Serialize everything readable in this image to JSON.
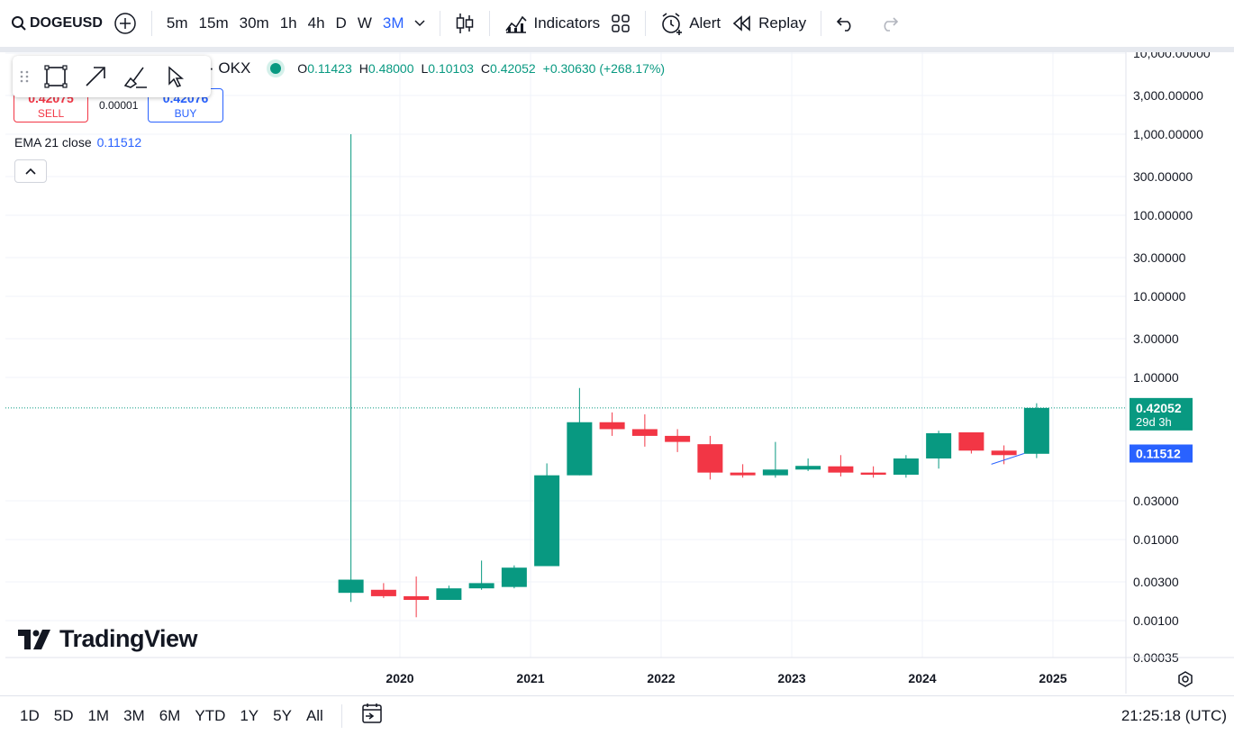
{
  "symbol": "DOGEUSD",
  "toolbar": {
    "intervals": [
      "5m",
      "15m",
      "30m",
      "1h",
      "4h",
      "D",
      "W",
      "3M"
    ],
    "active_interval": "3M",
    "indicators_label": "Indicators",
    "alert_label": "Alert",
    "replay_label": "Replay"
  },
  "legend": {
    "exchange_suffix": "· OKX",
    "o_label": "O",
    "o_value": "0.11423",
    "h_label": "H",
    "h_value": "0.48000",
    "l_label": "L",
    "l_value": "0.10103",
    "c_label": "C",
    "c_value": "0.42052",
    "change": "+0.30630 (+268.17%)"
  },
  "trade": {
    "sell_price": "0.42075",
    "sell_label": "SELL",
    "spread": "0.00001",
    "buy_price": "0.42076",
    "buy_label": "BUY"
  },
  "indicator": {
    "label": "EMA 21 close",
    "value": "0.11512"
  },
  "branding": {
    "logo_text": "TradingView"
  },
  "bottom": {
    "ranges": [
      "1D",
      "5D",
      "1M",
      "3M",
      "6M",
      "YTD",
      "1Y",
      "5Y",
      "All"
    ],
    "clock": "21:25:18 (UTC)"
  },
  "colors": {
    "up": "#089981",
    "down": "#f23645",
    "ema": "#2962ff",
    "accent": "#2962ff"
  },
  "chart_data": {
    "type": "candlestick",
    "interval": "3M",
    "y_scale": "log",
    "ylim": [
      0.00035,
      10000
    ],
    "y_ticks": [
      "10,000.00000",
      "3,000.00000",
      "1,000.00000",
      "300.00000",
      "100.00000",
      "30.00000",
      "10.00000",
      "3.00000",
      "1.00000",
      "0.03000",
      "0.01000",
      "0.00300",
      "0.00100",
      "0.00035"
    ],
    "x_ticks": [
      "2020",
      "2021",
      "2022",
      "2023",
      "2024",
      "2025"
    ],
    "candles": [
      {
        "t": "2019-07",
        "o": 0.0022,
        "h": 1000,
        "l": 0.0017,
        "c": 0.0032
      },
      {
        "t": "2019-10",
        "o": 0.0024,
        "h": 0.0029,
        "l": 0.0019,
        "c": 0.002
      },
      {
        "t": "2020-01",
        "o": 0.002,
        "h": 0.0035,
        "l": 0.0011,
        "c": 0.0018
      },
      {
        "t": "2020-04",
        "o": 0.0018,
        "h": 0.0027,
        "l": 0.0018,
        "c": 0.0025
      },
      {
        "t": "2020-07",
        "o": 0.0025,
        "h": 0.0055,
        "l": 0.0024,
        "c": 0.0029
      },
      {
        "t": "2020-10",
        "o": 0.0026,
        "h": 0.0048,
        "l": 0.0025,
        "c": 0.0045
      },
      {
        "t": "2021-01",
        "o": 0.0047,
        "h": 0.087,
        "l": 0.0047,
        "c": 0.062
      },
      {
        "t": "2021-04",
        "o": 0.062,
        "h": 0.74,
        "l": 0.062,
        "c": 0.28
      },
      {
        "t": "2021-07",
        "o": 0.28,
        "h": 0.37,
        "l": 0.19,
        "c": 0.23
      },
      {
        "t": "2021-10",
        "o": 0.23,
        "h": 0.35,
        "l": 0.14,
        "c": 0.19
      },
      {
        "t": "2022-01",
        "o": 0.19,
        "h": 0.23,
        "l": 0.12,
        "c": 0.16
      },
      {
        "t": "2022-04",
        "o": 0.15,
        "h": 0.19,
        "l": 0.055,
        "c": 0.067
      },
      {
        "t": "2022-07",
        "o": 0.067,
        "h": 0.085,
        "l": 0.058,
        "c": 0.062
      },
      {
        "t": "2022-10",
        "o": 0.062,
        "h": 0.16,
        "l": 0.058,
        "c": 0.073
      },
      {
        "t": "2023-01",
        "o": 0.073,
        "h": 0.1,
        "l": 0.07,
        "c": 0.081
      },
      {
        "t": "2023-04",
        "o": 0.08,
        "h": 0.11,
        "l": 0.06,
        "c": 0.067
      },
      {
        "t": "2023-07",
        "o": 0.067,
        "h": 0.08,
        "l": 0.058,
        "c": 0.063
      },
      {
        "t": "2023-10",
        "o": 0.063,
        "h": 0.11,
        "l": 0.058,
        "c": 0.1
      },
      {
        "t": "2024-01",
        "o": 0.1,
        "h": 0.22,
        "l": 0.075,
        "c": 0.205
      },
      {
        "t": "2024-04",
        "o": 0.21,
        "h": 0.21,
        "l": 0.115,
        "c": 0.125
      },
      {
        "t": "2024-07",
        "o": 0.125,
        "h": 0.145,
        "l": 0.085,
        "c": 0.11
      },
      {
        "t": "2024-10",
        "o": 0.11423,
        "h": 0.48,
        "l": 0.10103,
        "c": 0.42052
      }
    ],
    "ema": {
      "name": "EMA 21 close",
      "points": [
        {
          "t": "2024-07",
          "v": 0.085
        },
        {
          "t": "2024-10",
          "v": 0.11512
        }
      ]
    },
    "last_price_label": "0.42052",
    "countdown_label": "29d 3h",
    "ema_price_label": "0.11512"
  }
}
